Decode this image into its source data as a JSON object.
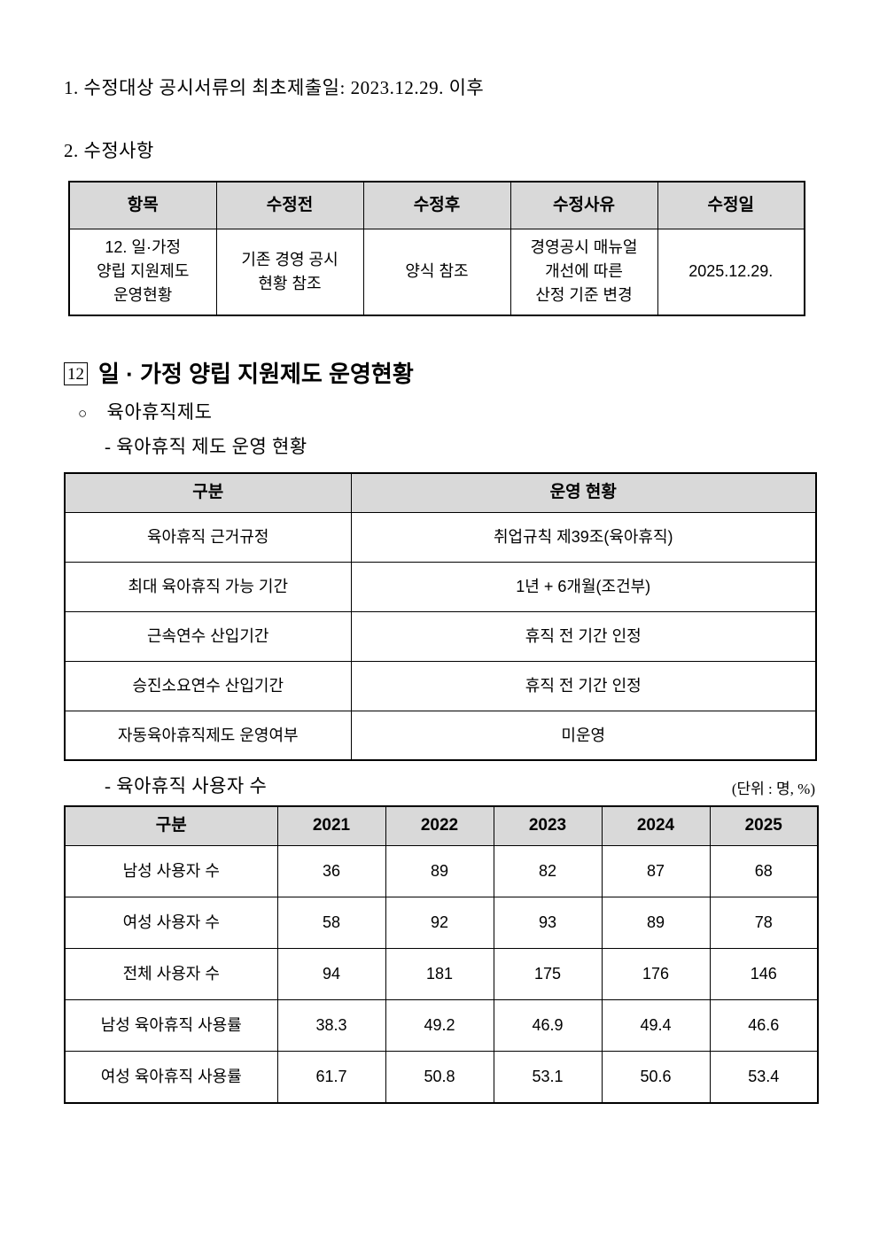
{
  "document": {
    "para_submission": "1. 수정대상 공시서류의 최초제출일: 2023.12.29. 이후",
    "para_revisions": "2. 수정사항",
    "section": {
      "number": "12",
      "title": "일 · 가정 양립 지원제도 운영현황"
    },
    "bullet_char": "○",
    "bullet_item": "육아휴직제도",
    "sub_item_program": "- 육아휴직 제도 운영 현황",
    "sub_item_users": "- 육아휴직 사용자 수",
    "unit_label": "(단위 : 명, %)"
  },
  "revision_table": {
    "headers": [
      "항목",
      "수정전",
      "수정후",
      "수정사유",
      "수정일"
    ],
    "rows": [
      [
        "12. 일·가정\n양립 지원제도\n운영현황",
        "기존 경영 공시\n현황 참조",
        "양식 참조",
        "경영공시 매뉴얼\n개선에 따른\n산정 기준 변경",
        "2025.12.29."
      ]
    ]
  },
  "program_table": {
    "headers": [
      "구분",
      "운영 현황"
    ],
    "rows": [
      [
        "육아휴직 근거규정",
        "취업규칙 제39조(육아휴직)"
      ],
      [
        "최대 육아휴직 가능 기간",
        "1년 + 6개월(조건부)"
      ],
      [
        "근속연수 산입기간",
        "휴직 전 기간 인정"
      ],
      [
        "승진소요연수 산입기간",
        "휴직 전 기간 인정"
      ],
      [
        "자동육아휴직제도 운영여부",
        "미운영"
      ]
    ]
  },
  "usage_table": {
    "headers": [
      "구분",
      "2021",
      "2022",
      "2023",
      "2024",
      "2025"
    ],
    "rows": [
      [
        "남성 사용자 수",
        "36",
        "89",
        "82",
        "87",
        "68"
      ],
      [
        "여성 사용자 수",
        "58",
        "92",
        "93",
        "89",
        "78"
      ],
      [
        "전체 사용자 수",
        "94",
        "181",
        "175",
        "176",
        "146"
      ],
      [
        "남성 육아휴직 사용률",
        "38.3",
        "49.2",
        "46.9",
        "49.4",
        "46.6"
      ],
      [
        "여성 육아휴직 사용률",
        "61.7",
        "50.8",
        "53.1",
        "50.6",
        "53.4"
      ]
    ]
  },
  "colors": {
    "header_bg": "#d9d9d9",
    "border": "#000000",
    "text": "#000000"
  }
}
